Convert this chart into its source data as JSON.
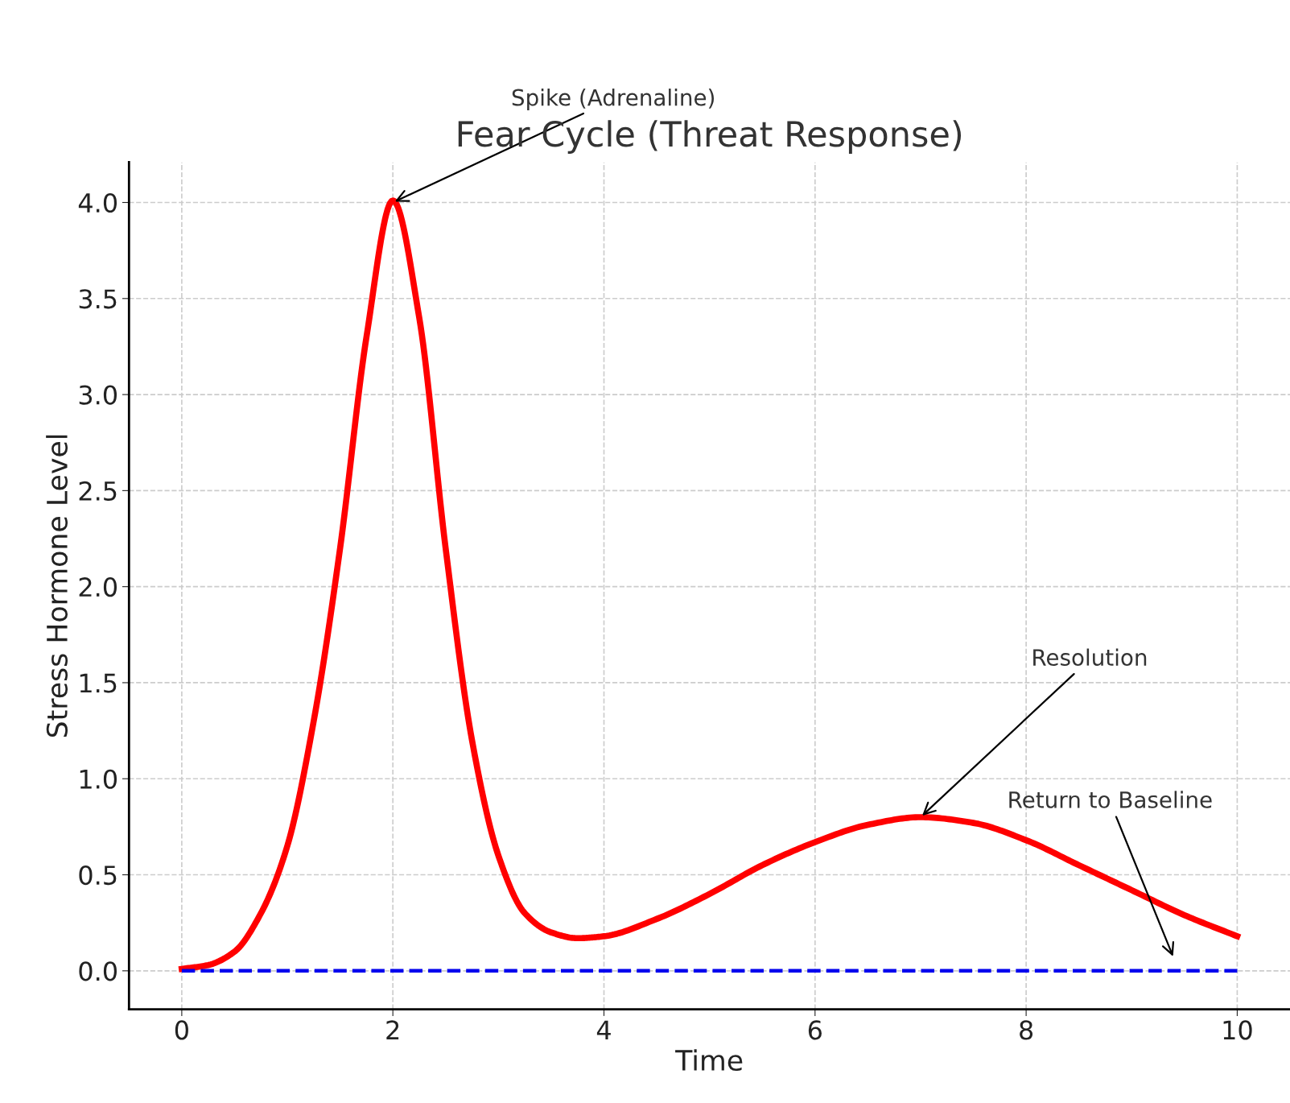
{
  "chart_data": {
    "type": "line",
    "title": "Fear Cycle (Threat Response)",
    "xlabel": "Time",
    "ylabel": "Stress Hormone Level",
    "xlim": [
      -0.5,
      10.5
    ],
    "ylim": [
      -0.2,
      4.21
    ],
    "xticks": [
      0,
      2,
      4,
      6,
      8,
      10
    ],
    "yticks": [
      {
        "value": 0,
        "label": "0.0"
      },
      0.5,
      {
        "value": 1,
        "label": "1.0"
      },
      1.5,
      {
        "value": 2,
        "label": "2.0"
      },
      2.5,
      {
        "value": 3,
        "label": "3.0"
      },
      3.5,
      {
        "value": 4,
        "label": "4.0"
      }
    ],
    "grid": true,
    "line_style": "solid",
    "series": [
      {
        "color": "#ff0000",
        "x": [
          0,
          0.25,
          0.5,
          0.75,
          1.0,
          1.25,
          1.5,
          1.75,
          2.0,
          2.25,
          2.5,
          2.75,
          3.0,
          3.25,
          3.5,
          3.75,
          4.0,
          4.5,
          5.0,
          5.5,
          6.0,
          6.5,
          7.0,
          7.5,
          8.0,
          8.5,
          9.0,
          9.5,
          10.0
        ],
        "values": [
          0.01,
          0.03,
          0.1,
          0.3,
          0.65,
          1.3,
          2.2,
          3.3,
          4.01,
          3.4,
          2.2,
          1.2,
          0.6,
          0.3,
          0.2,
          0.17,
          0.18,
          0.27,
          0.4,
          0.55,
          0.67,
          0.76,
          0.8,
          0.77,
          0.68,
          0.55,
          0.42,
          0.29,
          0.18
        ]
      },
      {
        "color": "#0000ee",
        "line_style": "dashed",
        "x": [
          0,
          10
        ],
        "values": [
          0,
          0
        ]
      }
    ],
    "annotations": [
      {
        "text": "Spike (Adrenaline)",
        "x": 2,
        "y": 4.0
      },
      {
        "text": "Resolution",
        "x": 7,
        "y": 0.8
      },
      "Return to Baseline"
    ]
  }
}
